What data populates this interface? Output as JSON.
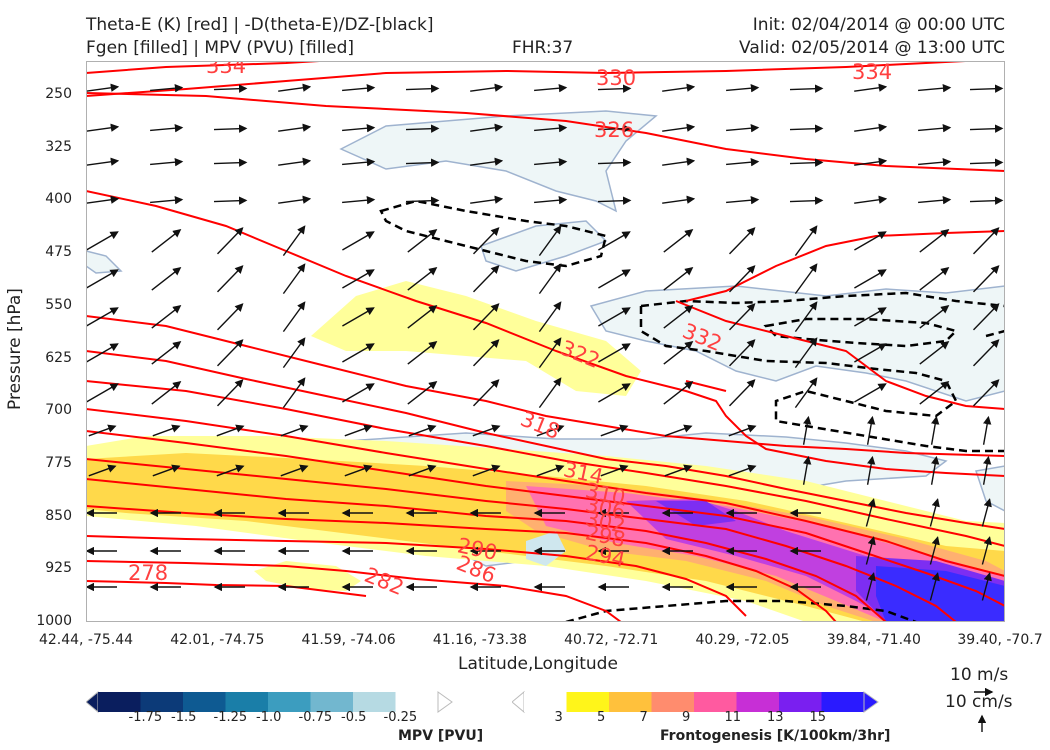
{
  "header": {
    "title_line1": "Theta-E (K) [red] | -D(theta-E)/DZ-[black]",
    "title_line2": "Fgen [filled] | MPV (PVU) [filled]",
    "fhr": "FHR:37",
    "init": "Init: 02/04/2014 @ 00:00 UTC",
    "valid": "Valid: 02/05/2014 @ 13:00 UTC"
  },
  "chart_data": {
    "type": "cross-section",
    "xlabel": "Latitude,Longitude",
    "ylabel": "Pressure [hPa]",
    "ylim": [
      1000,
      200
    ],
    "y_scale": "log",
    "y_ticks": [
      "250",
      "325",
      "400",
      "475",
      "550",
      "625",
      "700",
      "775",
      "850",
      "925",
      "1000"
    ],
    "x_ticks": [
      "42.44, -75.44",
      "42.01, -74.75",
      "41.59, -74.06",
      "41.16, -73.38",
      "40.72, -72.71",
      "40.29, -72.05",
      "39.84, -71.40",
      "39.40, -70.7"
    ],
    "theta_e_contour_labels": [
      "334",
      "330",
      "326",
      "334",
      "322",
      "332",
      "318",
      "314",
      "310",
      "306",
      "302",
      "298",
      "294",
      "290",
      "286",
      "282",
      "278"
    ],
    "theta_e_color": "#ff0000",
    "mpv_colorbar": {
      "title": "MPV [PVU]",
      "tick_labels": [
        "-1.75",
        "-1.5",
        "-1.25",
        "-1.0",
        "-0.75",
        "-0.5",
        "-0.25"
      ],
      "colors": [
        "#0a1e5e",
        "#0c3a78",
        "#0e5a92",
        "#1a7ea8",
        "#3c9dbf",
        "#72b7cf",
        "#b6dae3",
        "#ffffff"
      ]
    },
    "fgen_colorbar": {
      "title": "Frontogenesis [K/100km/3hr]",
      "tick_labels": [
        "3",
        "5",
        "7",
        "9",
        "11",
        "13",
        "15"
      ],
      "colors": [
        "#ffffff",
        "#fff51a",
        "#ffc13c",
        "#ff8c6e",
        "#ff5aa0",
        "#c72fd6",
        "#7a1ff0",
        "#2a1aff"
      ]
    },
    "wind_reference": {
      "horizontal": "10 m/s",
      "vertical": "10 cm/s"
    }
  }
}
